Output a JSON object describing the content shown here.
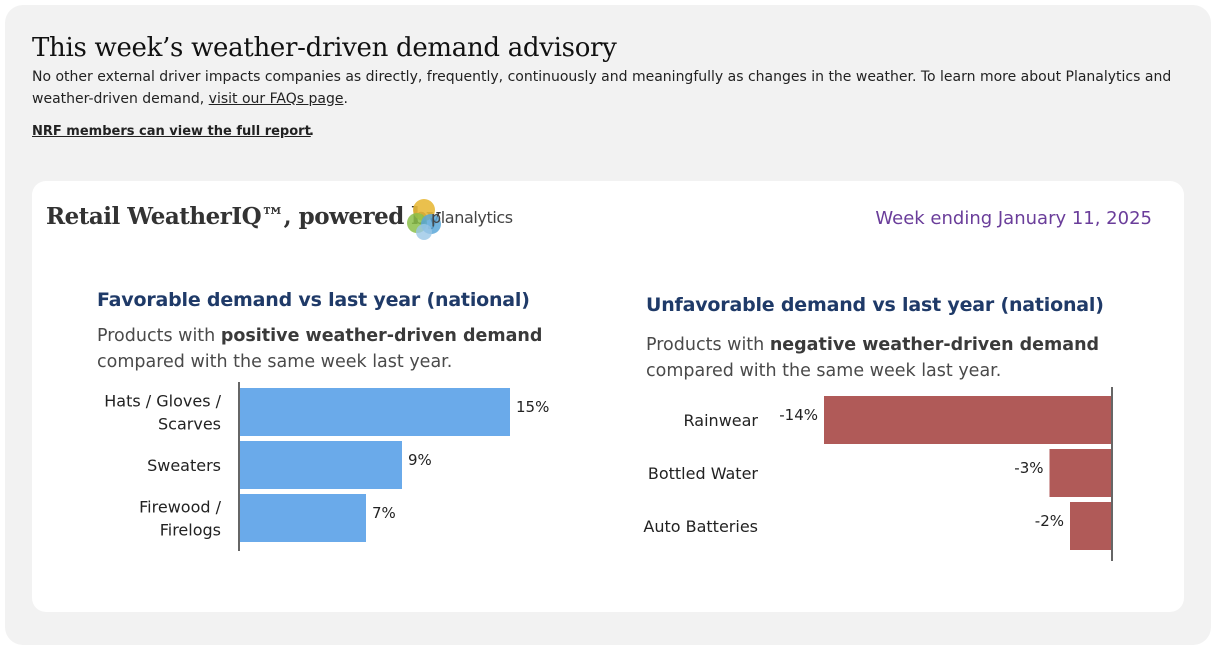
{
  "header": {
    "title": "This week’s weather-driven demand advisory",
    "intro_text": "No other external driver impacts companies as directly, frequently, continuously and meaningfully as changes in the weather. To learn more about Planalytics and weather-driven demand, ",
    "faq_link": "visit our FAQs page",
    "intro_end": ".",
    "nrf_link": "NRF members can view the full report",
    "nrf_end": "."
  },
  "card": {
    "title": "Retail WeatherIQ™, powered by",
    "logo_text": "planalytics",
    "week": "Week ending January 11, 2025"
  },
  "colors": {
    "favorable_bar": "#6aaaea",
    "unfavorable_bar": "#b05a58",
    "title_blue": "#1f3a68",
    "week_purple": "#6a3d9a"
  },
  "chart_data": [
    {
      "type": "bar",
      "orientation": "horizontal",
      "title": "Favorable demand vs last year (national)",
      "subtitle_pre": "Products with ",
      "subtitle_bold": "positive weather-driven demand",
      "subtitle_line2": "compared with the same week last year.",
      "categories": [
        [
          "Hats / Gloves /",
          "Scarves"
        ],
        [
          "Sweaters"
        ],
        [
          "Firewood /",
          "Firelogs"
        ]
      ],
      "values": [
        15,
        9,
        7
      ],
      "value_labels": [
        "15%",
        "9%",
        "7%"
      ],
      "unit": "%",
      "xlim": [
        0,
        15
      ]
    },
    {
      "type": "bar",
      "orientation": "horizontal",
      "title": "Unfavorable demand vs last year (national)",
      "subtitle_pre": "Products with ",
      "subtitle_bold": "negative weather-driven demand",
      "subtitle_line2": "compared with the same week last year.",
      "categories": [
        [
          "Rainwear"
        ],
        [
          "Bottled Water"
        ],
        [
          "Auto Batteries"
        ]
      ],
      "values": [
        -14,
        -3,
        -2
      ],
      "value_labels": [
        "-14%",
        "-3%",
        "-2%"
      ],
      "unit": "%",
      "xlim": [
        -14,
        0
      ]
    }
  ]
}
